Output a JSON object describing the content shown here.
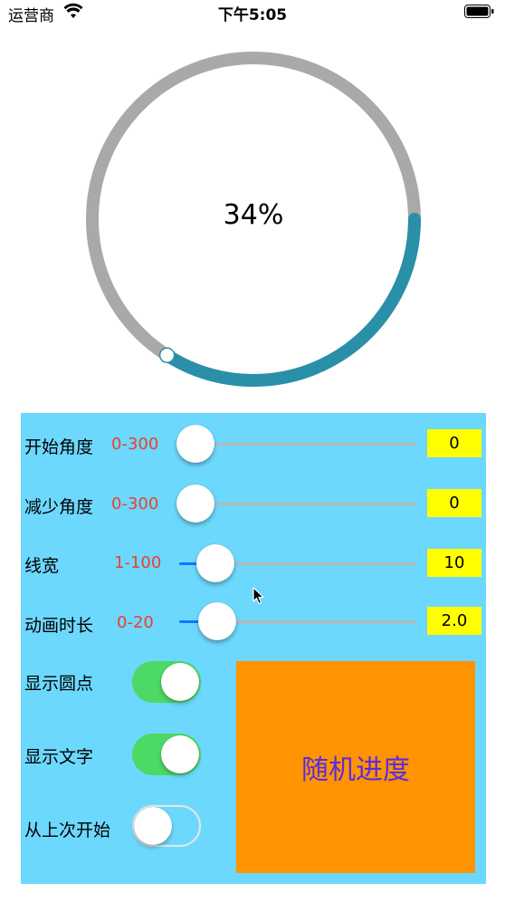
{
  "status_bar": {
    "carrier": "运营商",
    "time": "下午5:05"
  },
  "progress": {
    "percent": 34,
    "label": "34%",
    "track_color": "#a9a9a9",
    "progress_color": "#2a8fa8"
  },
  "controls": {
    "sliders": [
      {
        "label": "开始角度",
        "range": "0-300",
        "value": "0",
        "min": 0,
        "max": 300,
        "current": 0
      },
      {
        "label": "减少角度",
        "range": "0-300",
        "value": "0",
        "min": 0,
        "max": 300,
        "current": 0
      },
      {
        "label": "线宽",
        "range": "1-100",
        "value": "10",
        "min": 1,
        "max": 100,
        "current": 10
      },
      {
        "label": "动画时长",
        "range": "0-20",
        "value": "2.0",
        "min": 0,
        "max": 20,
        "current": 2.0
      }
    ],
    "switches": [
      {
        "label": "显示圆点",
        "on": true
      },
      {
        "label": "显示文字",
        "on": true
      },
      {
        "label": "从上次开始",
        "on": false
      }
    ],
    "random_button": "随机进度"
  },
  "colors": {
    "panel_bg": "#6dd8fd",
    "range_text": "#e8412b",
    "value_box": "#ffff00",
    "switch_on": "#4cd964",
    "button_bg": "#ff9300",
    "button_text": "#5a2ce0"
  }
}
